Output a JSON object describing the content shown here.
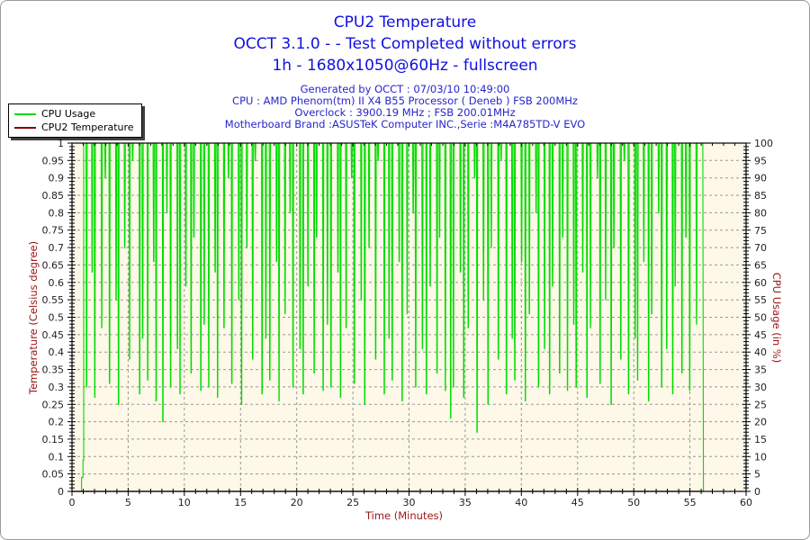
{
  "header": {
    "title": "CPU2 Temperature",
    "subtitle_status": "OCCT 3.1.0 -  - Test Completed without errors",
    "subtitle_mode": "1h - 1680x1050@60Hz - fullscreen",
    "info_lines": [
      "Generated by OCCT : 07/03/10 10:49:00",
      "CPU : AMD Phenom(tm) II X4 B55 Processor ( Deneb ) FSB 200MHz",
      "Overclock : 3900.19 MHz ; FSB 200.01MHz",
      "Motherboard Brand :ASUSTeK Computer INC.,Serie :M4A785TD-V EVO"
    ]
  },
  "legend": {
    "position": "top-left",
    "items": [
      {
        "label": "CPU Usage",
        "color": "#00dc00"
      },
      {
        "label": "CPU2 Temperature",
        "color": "#800000"
      }
    ]
  },
  "colors": {
    "title_blue": "#1010e0",
    "info_blue": "#2626cd",
    "axis_title_red": "#9c1616",
    "tick_label": "#222222",
    "cpu_usage_green": "#00dc00",
    "temperature_maroon": "#800000",
    "plot_background": "#fdf8e7",
    "grid_gray": "#999999",
    "axis_black": "#000000",
    "page_border": "#999999"
  },
  "chart_data": {
    "type": "line",
    "title": "CPU2 Temperature",
    "x_axis": {
      "label": "Time (Minutes)",
      "min": 0,
      "max": 60,
      "major_step": 5,
      "minor_step": 1
    },
    "y_left_axis": {
      "label": "Temperature (Celsius degree)",
      "min": 0,
      "max": 1,
      "major_step": 0.05,
      "minor_step": 0.01
    },
    "y_right_axis": {
      "label": "CPU Usage (in %)",
      "min": 0,
      "max": 100,
      "major_step": 5,
      "minor_step": 1
    },
    "grid": {
      "horizontal_step": 0.05,
      "vertical_step": 5,
      "style": "dashed",
      "color": "#999999"
    },
    "plot_background": "#fdf8e7",
    "series": [
      {
        "name": "CPU Usage",
        "axis": "right",
        "color": "#00dc00",
        "baseline_pct": 100,
        "start_points": [
          [
            0,
            0
          ],
          [
            0.85,
            0
          ],
          [
            0.85,
            4
          ],
          [
            0.98,
            4
          ],
          [
            0.98,
            9
          ],
          [
            1.04,
            9
          ],
          [
            1.04,
            100
          ]
        ],
        "dips": {
          "start_min": 1.3,
          "step_min": 0.42,
          "bottoms_pct": [
            30,
            63,
            27,
            47,
            90,
            31,
            55,
            25,
            70,
            38,
            95,
            28,
            44,
            32,
            66,
            26,
            20,
            80,
            30,
            41,
            28,
            59,
            34,
            73,
            29,
            48,
            30,
            63,
            27,
            47,
            90,
            31,
            55,
            25,
            70,
            38,
            95,
            28,
            44,
            32,
            66,
            26,
            51,
            80,
            30,
            41,
            28,
            59,
            34,
            73,
            29,
            48,
            30,
            63,
            27,
            47,
            90,
            31,
            55,
            25,
            70,
            38,
            95,
            28,
            44,
            32,
            66,
            26,
            51,
            80,
            30,
            41,
            28,
            59,
            34,
            73,
            29,
            21,
            30,
            63,
            27,
            47,
            90,
            17,
            55,
            25,
            70,
            38,
            95,
            28,
            44,
            32,
            66,
            26,
            51,
            80,
            30,
            41,
            28,
            59,
            34,
            73,
            29,
            48,
            30,
            63,
            27,
            47,
            90,
            31,
            55,
            25,
            70,
            38,
            95,
            28,
            44,
            32,
            66,
            26,
            51,
            80,
            30,
            41,
            28,
            59,
            34,
            73,
            29,
            48
          ]
        },
        "end_points": [
          [
            56.15,
            100
          ],
          [
            56.2,
            0
          ]
        ]
      },
      {
        "name": "CPU2 Temperature",
        "axis": "left",
        "color": "#800000",
        "points": [
          [
            0,
            0
          ],
          [
            56.2,
            0
          ]
        ]
      }
    ]
  }
}
